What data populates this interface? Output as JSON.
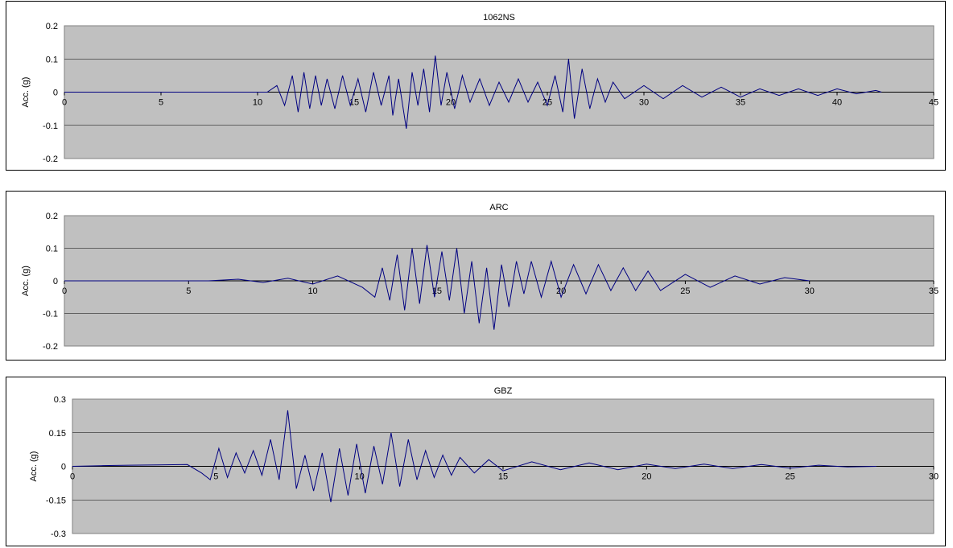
{
  "chart_data": [
    {
      "type": "line",
      "title": "1062NS",
      "ylabel": "Acc. (g)",
      "xlabel": "",
      "xlim": [
        0,
        45
      ],
      "ylim": [
        -0.2,
        0.2
      ],
      "x_ticks": [
        0,
        5,
        10,
        15,
        20,
        25,
        30,
        35,
        40,
        45
      ],
      "x_tick_labels": [
        "0",
        "5",
        "10",
        "15",
        "20",
        "25",
        "30",
        "35",
        "40",
        "45"
      ],
      "y_ticks": [
        0.2,
        0.1,
        0,
        -0.1,
        -0.2
      ],
      "y_tick_labels": [
        "0.2",
        "0.1",
        "0",
        "-0.1",
        "-0.2"
      ],
      "grid": true,
      "plot_background": "#c0c0c0",
      "line_color": "#000080",
      "series": [
        {
          "x": [
            0,
            5,
            10.5,
            11,
            11.4,
            11.8,
            12.1,
            12.4,
            12.7,
            13.0,
            13.3,
            13.6,
            14.0,
            14.4,
            14.8,
            15.2,
            15.6,
            16.0,
            16.4,
            16.8,
            17.0,
            17.3,
            17.7,
            18.0,
            18.3,
            18.6,
            18.9,
            19.2,
            19.5,
            19.8,
            20.2,
            20.6,
            21.0,
            21.5,
            22.0,
            22.5,
            23.0,
            23.5,
            24.0,
            24.5,
            25.0,
            25.4,
            25.8,
            26.1,
            26.4,
            26.8,
            27.2,
            27.6,
            28.0,
            28.4,
            29.0,
            30.0,
            31.0,
            32.0,
            33.0,
            34.0,
            35.0,
            36.0,
            37.0,
            38.0,
            39.0,
            40.0,
            41.0,
            42.0,
            42.3
          ],
          "y": [
            0,
            0,
            0,
            0.02,
            -0.04,
            0.05,
            -0.06,
            0.06,
            -0.05,
            0.05,
            -0.04,
            0.04,
            -0.05,
            0.05,
            -0.04,
            0.04,
            -0.06,
            0.06,
            -0.04,
            0.05,
            -0.07,
            0.04,
            -0.11,
            0.06,
            -0.04,
            0.07,
            -0.06,
            0.11,
            -0.04,
            0.06,
            -0.05,
            0.05,
            -0.03,
            0.04,
            -0.04,
            0.03,
            -0.03,
            0.04,
            -0.03,
            0.03,
            -0.04,
            0.05,
            -0.06,
            0.1,
            -0.08,
            0.07,
            -0.05,
            0.04,
            -0.03,
            0.03,
            -0.02,
            0.02,
            -0.02,
            0.02,
            -0.015,
            0.015,
            -0.015,
            0.01,
            -0.01,
            0.01,
            -0.01,
            0.01,
            -0.005,
            0.005,
            0
          ]
        }
      ]
    },
    {
      "type": "line",
      "title": "ARC",
      "ylabel": "Acc. (g)",
      "xlabel": "",
      "xlim": [
        0,
        35
      ],
      "ylim": [
        -0.2,
        0.2
      ],
      "x_ticks": [
        0,
        5,
        10,
        15,
        20,
        25,
        30,
        35
      ],
      "x_tick_labels": [
        "0",
        "5",
        "10",
        "15",
        "20",
        "25",
        "30",
        "35"
      ],
      "y_ticks": [
        0.2,
        0.1,
        0,
        -0.1,
        -0.2
      ],
      "y_tick_labels": [
        "0.2",
        "0.1",
        "0",
        "-0.1",
        "-0.2"
      ],
      "grid": true,
      "plot_background": "#c0c0c0",
      "line_color": "#000080",
      "series": [
        {
          "x": [
            0,
            5,
            5.8,
            7,
            8,
            9,
            10,
            11,
            12,
            12.5,
            12.8,
            13.1,
            13.4,
            13.7,
            14.0,
            14.3,
            14.6,
            14.9,
            15.2,
            15.5,
            15.8,
            16.1,
            16.4,
            16.7,
            17.0,
            17.3,
            17.6,
            17.9,
            18.2,
            18.5,
            18.8,
            19.2,
            19.6,
            20.0,
            20.5,
            21.0,
            21.5,
            22.0,
            22.5,
            23.0,
            23.5,
            24.0,
            25.0,
            26.0,
            27.0,
            28.0,
            29.0,
            30.0
          ],
          "y": [
            0,
            0,
            0,
            0.005,
            -0.005,
            0.008,
            -0.01,
            0.015,
            -0.02,
            -0.05,
            0.04,
            -0.06,
            0.08,
            -0.09,
            0.1,
            -0.07,
            0.11,
            -0.05,
            0.09,
            -0.06,
            0.1,
            -0.1,
            0.06,
            -0.13,
            0.04,
            -0.15,
            0.05,
            -0.08,
            0.06,
            -0.04,
            0.06,
            -0.05,
            0.06,
            -0.05,
            0.05,
            -0.04,
            0.05,
            -0.03,
            0.04,
            -0.03,
            0.03,
            -0.03,
            0.02,
            -0.02,
            0.015,
            -0.01,
            0.01,
            0
          ]
        }
      ]
    },
    {
      "type": "line",
      "title": "GBZ",
      "ylabel": "Acc. (g)",
      "xlabel": "",
      "xlim": [
        0,
        30
      ],
      "ylim": [
        -0.3,
        0.3
      ],
      "x_ticks": [
        0,
        5,
        10,
        15,
        20,
        25,
        30
      ],
      "x_tick_labels": [
        "0",
        "5",
        "10",
        "15",
        "20",
        "25",
        "30"
      ],
      "y_ticks": [
        0.3,
        0.15,
        0,
        -0.15,
        -0.3
      ],
      "y_tick_labels": [
        "0.3",
        "0.15",
        "0",
        "-0.15",
        "-0.3"
      ],
      "grid": true,
      "plot_background": "#c0c0c0",
      "line_color": "#000080",
      "series": [
        {
          "x": [
            0,
            1,
            2,
            3,
            4,
            4.5,
            4.8,
            5.1,
            5.4,
            5.7,
            6.0,
            6.3,
            6.6,
            6.9,
            7.2,
            7.5,
            7.8,
            8.1,
            8.4,
            8.7,
            9.0,
            9.3,
            9.6,
            9.9,
            10.2,
            10.5,
            10.8,
            11.1,
            11.4,
            11.7,
            12.0,
            12.3,
            12.6,
            12.9,
            13.2,
            13.5,
            14.0,
            14.5,
            15.0,
            16.0,
            17.0,
            18.0,
            19.0,
            20.0,
            21.0,
            22.0,
            23.0,
            24.0,
            25.0,
            26.0,
            27.0,
            28.0
          ],
          "y": [
            0,
            0.003,
            0.005,
            0.006,
            0.008,
            -0.03,
            -0.06,
            0.08,
            -0.05,
            0.06,
            -0.03,
            0.07,
            -0.04,
            0.12,
            -0.06,
            0.25,
            -0.1,
            0.05,
            -0.11,
            0.06,
            -0.16,
            0.08,
            -0.13,
            0.1,
            -0.12,
            0.09,
            -0.08,
            0.15,
            -0.09,
            0.12,
            -0.06,
            0.07,
            -0.05,
            0.05,
            -0.04,
            0.04,
            -0.03,
            0.03,
            -0.02,
            0.02,
            -0.015,
            0.015,
            -0.015,
            0.01,
            -0.01,
            0.01,
            -0.01,
            0.008,
            -0.008,
            0.005,
            -0.003,
            0
          ]
        }
      ]
    }
  ]
}
